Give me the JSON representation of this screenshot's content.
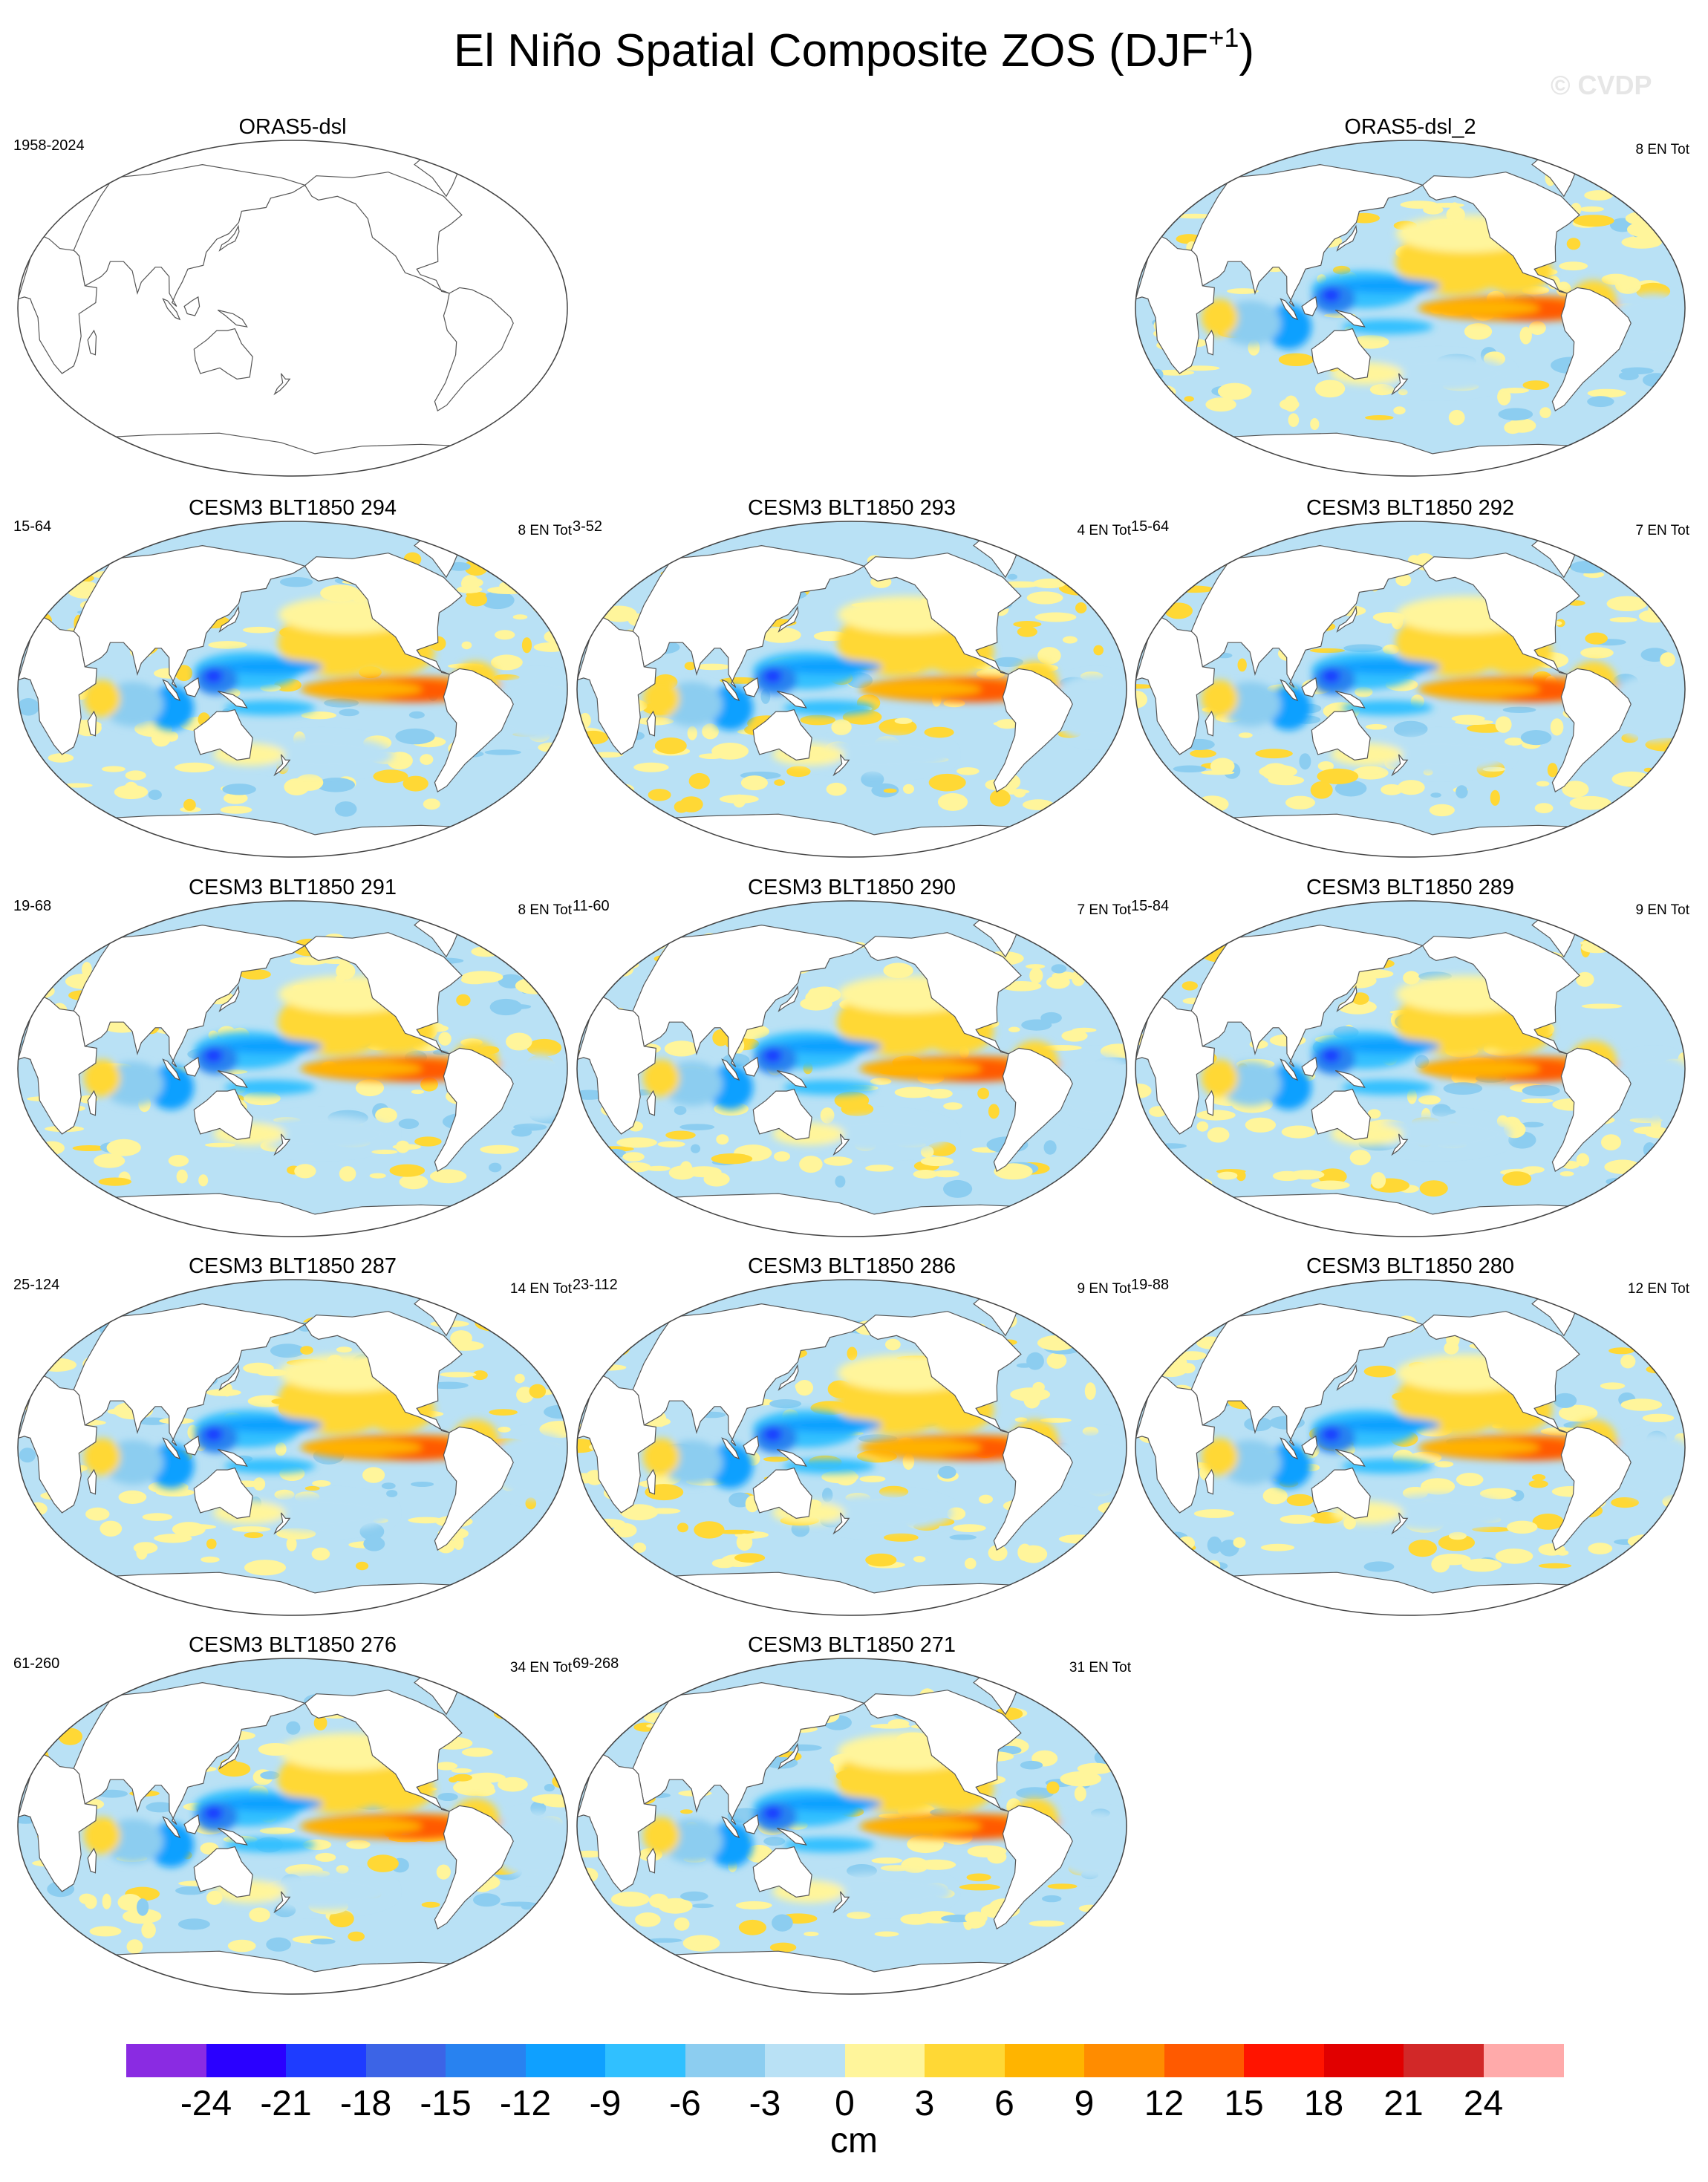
{
  "title": {
    "main": "El Niño Spatial Composite ZOS (DJF",
    "sup": "+1",
    "end": ")"
  },
  "watermark": "© CVDP",
  "panels": [
    {
      "title": "ORAS5-dsl",
      "years": "1958-2024",
      "count": "",
      "filled": false
    },
    {
      "title": "ORAS5-dsl_2",
      "years": "",
      "count": "8 EN Tot",
      "filled": true
    },
    {
      "title": "CESM3 BLT1850 294",
      "years": "15-64",
      "count": "8 EN Tot",
      "filled": true
    },
    {
      "title": "CESM3 BLT1850 293",
      "years": "3-52",
      "count": "4 EN Tot",
      "filled": true
    },
    {
      "title": "CESM3 BLT1850 292",
      "years": "15-64",
      "count": "7 EN Tot",
      "filled": true
    },
    {
      "title": "CESM3 BLT1850 291",
      "years": "19-68",
      "count": "8 EN Tot",
      "filled": true
    },
    {
      "title": "CESM3 BLT1850 290",
      "years": "11-60",
      "count": "7 EN Tot",
      "filled": true
    },
    {
      "title": "CESM3 BLT1850 289",
      "years": "15-84",
      "count": "9 EN Tot",
      "filled": true
    },
    {
      "title": "CESM3 BLT1850 287",
      "years": "25-124",
      "count": "14 EN Tot",
      "filled": true
    },
    {
      "title": "CESM3 BLT1850 286",
      "years": "23-112",
      "count": "9 EN Tot",
      "filled": true
    },
    {
      "title": "CESM3 BLT1850 280",
      "years": "19-88",
      "count": "12 EN Tot",
      "filled": true
    },
    {
      "title": "CESM3 BLT1850 276",
      "years": "61-260",
      "count": "34 EN Tot",
      "filled": true
    },
    {
      "title": "CESM3 BLT1850 271",
      "years": "69-268",
      "count": "31 EN Tot",
      "filled": true
    }
  ],
  "colorbar": {
    "units": "cm",
    "colors": [
      "#8a2be2",
      "#2a00ff",
      "#1e3cff",
      "#3c64e6",
      "#2882f0",
      "#0fa0ff",
      "#30c0ff",
      "#8ccdf0",
      "#b9e1f5",
      "#fff59b",
      "#ffd835",
      "#ffb400",
      "#ff8c00",
      "#ff5a00",
      "#ff1400",
      "#e10000",
      "#d22828",
      "#ffaaaa"
    ],
    "ticks": [
      "-24",
      "-21",
      "-18",
      "-15",
      "-12",
      "-9",
      "-6",
      "-3",
      "0",
      "3",
      "6",
      "9",
      "12",
      "15",
      "18",
      "21",
      "24"
    ]
  }
}
